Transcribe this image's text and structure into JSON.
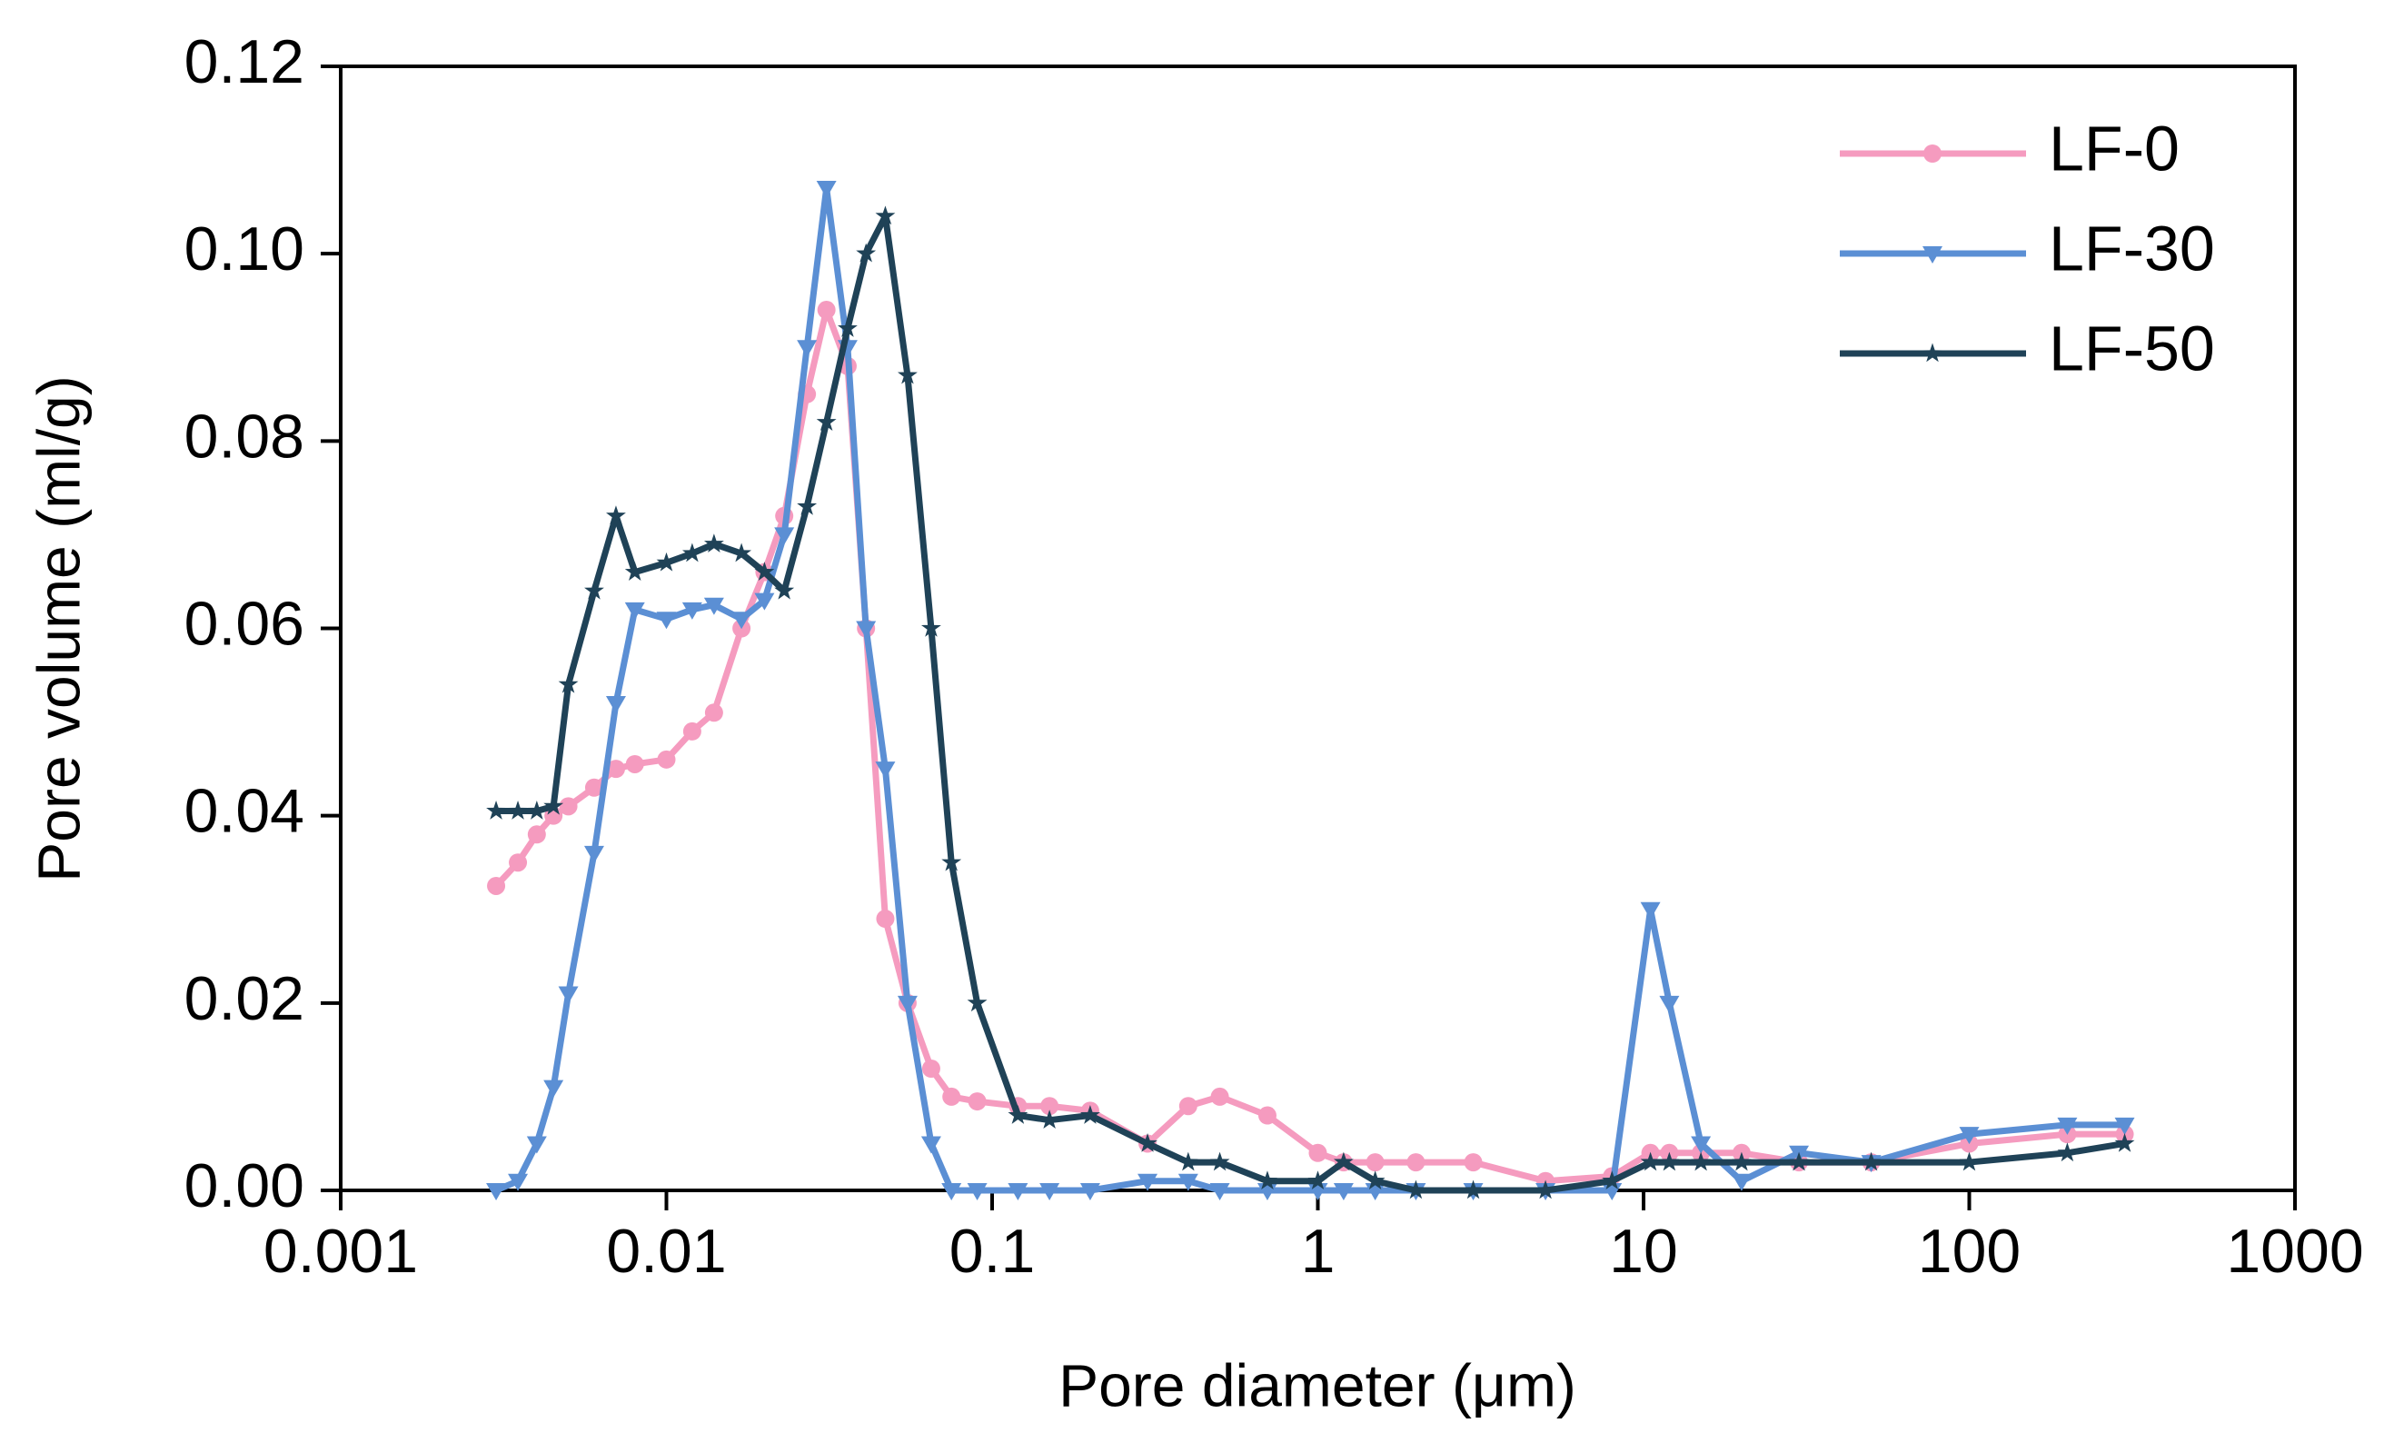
{
  "chart_data": {
    "type": "line",
    "xlabel": "Pore diameter (μm)",
    "ylabel": "Pore volume (ml/g)",
    "xscale": "log",
    "xlim": [
      0.001,
      1000
    ],
    "xticks": [
      0.001,
      0.01,
      0.1,
      1,
      10,
      100,
      1000
    ],
    "ylim": [
      0,
      0.12
    ],
    "yticks": [
      {
        "value": 0,
        "label": "0.00"
      },
      {
        "value": 0.02,
        "label": "0.02"
      },
      {
        "value": 0.04,
        "label": "0.04"
      },
      {
        "value": 0.06,
        "label": "0.06"
      },
      {
        "value": 0.08,
        "label": "0.08"
      },
      {
        "value": 0.1,
        "label": "0.10"
      },
      {
        "value": 0.12,
        "label": "0.12"
      }
    ],
    "legend": "top-right",
    "x": [
      0.003,
      0.0035,
      0.004,
      0.0045,
      0.005,
      0.006,
      0.007,
      0.008,
      0.01,
      0.012,
      0.014,
      0.017,
      0.02,
      0.023,
      0.027,
      0.031,
      0.036,
      0.041,
      0.047,
      0.055,
      0.065,
      0.075,
      0.09,
      0.12,
      0.15,
      0.2,
      0.3,
      0.4,
      0.5,
      0.7,
      1,
      1.2,
      1.5,
      2,
      3,
      5,
      8,
      10.5,
      12,
      15,
      20,
      30,
      50,
      100,
      200,
      300
    ],
    "series": [
      {
        "name": "LF-0",
        "color": "#f59bbf",
        "marker": "circle",
        "values": [
          0.0325,
          0.035,
          0.038,
          0.04,
          0.041,
          0.043,
          0.045,
          0.0455,
          0.046,
          0.049,
          0.051,
          0.06,
          0.066,
          0.072,
          0.085,
          0.094,
          0.088,
          0.06,
          0.029,
          0.02,
          0.013,
          0.01,
          0.0095,
          0.009,
          0.009,
          0.0085,
          0.005,
          0.009,
          0.01,
          0.008,
          0.004,
          0.003,
          0.003,
          0.003,
          0.003,
          0.001,
          0.0015,
          0.004,
          0.004,
          0.004,
          0.004,
          0.003,
          0.003,
          0.005,
          0.006,
          0.006
        ]
      },
      {
        "name": "LF-30",
        "color": "#5b8fd4",
        "marker": "triangle-down",
        "values": [
          0,
          0.001,
          0.005,
          0.011,
          0.021,
          0.036,
          0.052,
          0.062,
          0.061,
          0.062,
          0.0625,
          0.061,
          0.063,
          0.07,
          0.09,
          0.107,
          0.09,
          0.06,
          0.045,
          0.02,
          0.005,
          0,
          0,
          0,
          0,
          0,
          0.001,
          0.001,
          0,
          0,
          0,
          0,
          0,
          0,
          0,
          0,
          0,
          0.03,
          0.02,
          0.005,
          0.001,
          0.004,
          0.003,
          0.006,
          0.007,
          0.007
        ]
      },
      {
        "name": "LF-50",
        "color": "#1f4257",
        "marker": "star",
        "values": [
          0.0405,
          0.0405,
          0.0405,
          0.041,
          0.054,
          0.064,
          0.072,
          0.066,
          0.067,
          0.068,
          0.069,
          0.068,
          0.066,
          0.064,
          0.073,
          0.082,
          0.092,
          0.1,
          0.104,
          0.087,
          0.06,
          0.035,
          0.02,
          0.008,
          0.0075,
          0.008,
          0.005,
          0.003,
          0.003,
          0.001,
          0.001,
          0.003,
          0.001,
          0,
          0,
          0,
          0.001,
          0.003,
          0.003,
          0.003,
          0.003,
          0.003,
          0.003,
          0.003,
          0.004,
          0.005
        ]
      }
    ]
  }
}
